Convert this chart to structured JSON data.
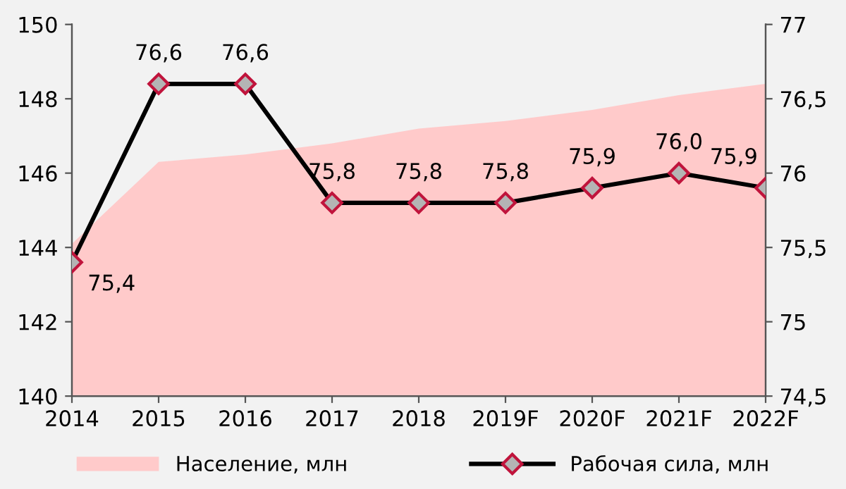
{
  "chart_data": {
    "type": "area",
    "categories": [
      "2014",
      "2015",
      "2016",
      "2017",
      "2018",
      "2019F",
      "2020F",
      "2021F",
      "2022F"
    ],
    "series": [
      {
        "name": "Население, млн",
        "color": "#ffcaca",
        "values": [
          144.1,
          146.3,
          146.5,
          146.8,
          147.2,
          147.4,
          147.7,
          148.1,
          148.4
        ]
      },
      {
        "name": "Рабочая сила, млн",
        "type": "line",
        "axis": "y2",
        "color": "#000000",
        "marker": "diamond",
        "values": [
          75.4,
          76.6,
          76.6,
          75.8,
          75.8,
          75.8,
          75.9,
          76.0,
          75.9
        ],
        "value_labels": [
          "75,4",
          "76,6",
          "76,6",
          "75,8",
          "75,8",
          "75,8",
          "75,9",
          "76,0",
          "75,9"
        ]
      }
    ],
    "ylim": [
      140,
      150
    ],
    "yticks": [
      140,
      142,
      144,
      146,
      148,
      150
    ],
    "y2lim": [
      74.5,
      77
    ],
    "y2ticks": [
      {
        "value": 74.5,
        "label": "74,5"
      },
      75,
      {
        "value": 75.5,
        "label": "75,5"
      },
      76,
      {
        "value": 76.5,
        "label": "76,5"
      },
      77
    ],
    "legend": "bottom",
    "grid": false
  }
}
